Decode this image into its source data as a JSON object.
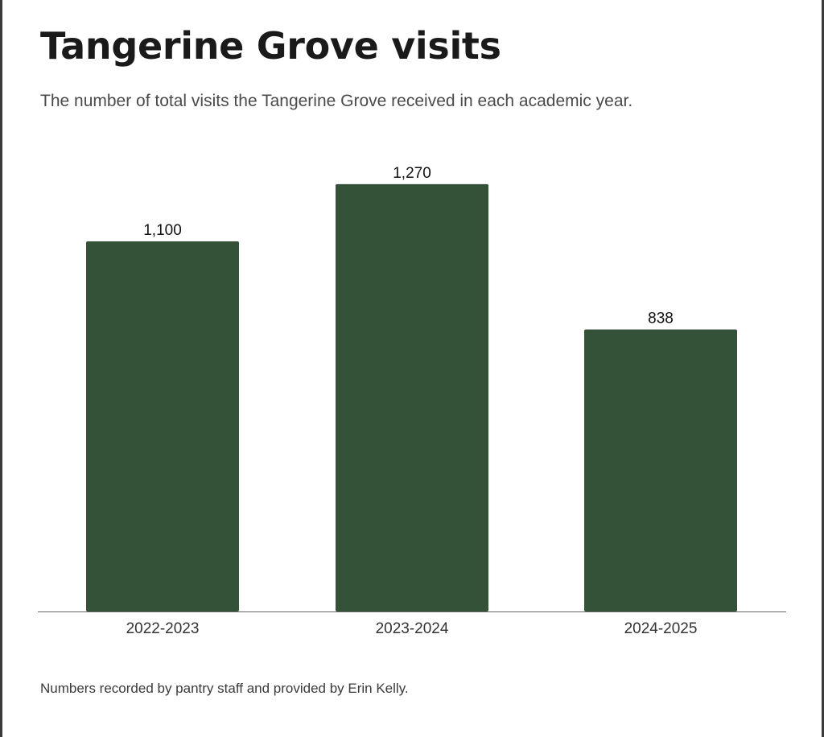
{
  "chart_data": {
    "type": "bar",
    "title": "Tangerine Grove visits",
    "subtitle": "The number of total visits the Tangerine Grove received in each academic year.",
    "categories": [
      "2022-2023",
      "2023-2024",
      "2024-2025"
    ],
    "values": [
      1100,
      1270,
      838
    ],
    "value_labels": [
      "1,100",
      "1,270",
      "838"
    ],
    "ylim": [
      0,
      1500
    ],
    "grid": false,
    "legend": "none",
    "bar_color": "#335237",
    "note": "Numbers recorded by pantry staff and provided by Erin Kelly."
  }
}
